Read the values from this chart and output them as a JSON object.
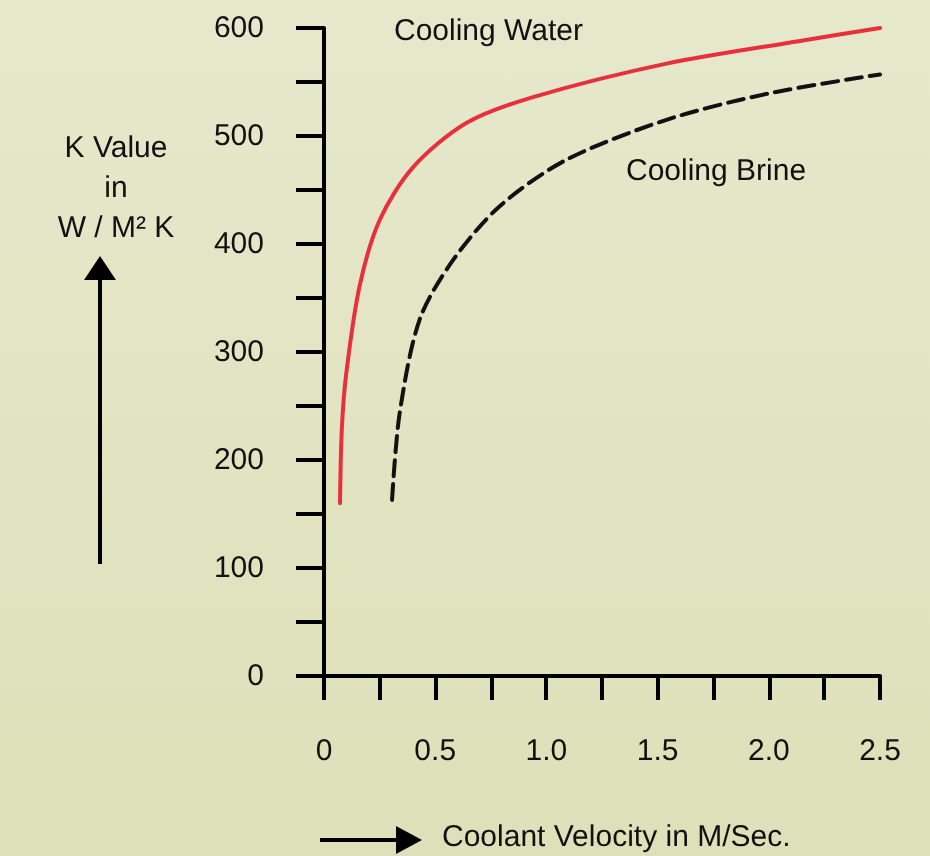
{
  "chart_data": {
    "type": "line",
    "xlabel": "Coolant Velocity in M/Sec.",
    "ylabel": "K Value\nin\nW / M² K",
    "xlim": [
      0,
      2.5
    ],
    "ylim": [
      0,
      600
    ],
    "xticks": [
      0,
      {
        "value": 0.25,
        "label": null
      },
      {
        "value": 0.5,
        "label": "0.5"
      },
      {
        "value": 0.75,
        "label": null
      },
      {
        "value": 1,
        "label": "1.0"
      },
      {
        "value": 1.25,
        "label": null
      },
      {
        "value": 1.5,
        "label": "1.5"
      },
      {
        "value": 1.75,
        "label": null
      },
      {
        "value": 2,
        "label": "2.0"
      },
      {
        "value": 2.25,
        "label": null
      },
      {
        "value": 2.5,
        "label": "2.5"
      }
    ],
    "yticks": [
      0,
      {
        "value": 50,
        "label": null
      },
      100,
      {
        "value": 150,
        "label": null
      },
      200,
      {
        "value": 250,
        "label": null
      },
      300,
      {
        "value": 350,
        "label": null
      },
      400,
      {
        "value": 450,
        "label": null
      },
      500,
      {
        "value": 550,
        "label": null
      },
      600
    ],
    "grid": false,
    "legend": false,
    "marker": "none",
    "series": [
      {
        "name": "Cooling Water",
        "color": "#e8303a",
        "line_style": "solid",
        "x": [
          0.072,
          0.08,
          0.1,
          0.16,
          0.25,
          0.4,
          0.64,
          0.94,
          1.54,
          2.14,
          2.5
        ],
        "values": [
          160,
          228,
          280,
          361,
          422,
          471,
          512,
          536,
          567,
          588,
          600
        ]
      },
      {
        "name": "Cooling Brine",
        "color": "#111111",
        "line_style": "dashed",
        "x": [
          0.306,
          0.34,
          0.43,
          0.58,
          0.79,
          1.09,
          1.54,
          1.99,
          2.5
        ],
        "values": [
          163,
          243,
          330,
          385,
          435,
          478,
          515,
          539,
          557
        ]
      }
    ]
  }
}
